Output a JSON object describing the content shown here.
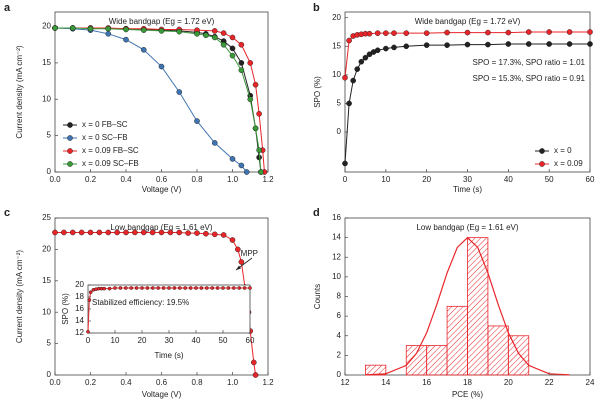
{
  "chart_data": [
    {
      "type": "line",
      "panel": "a",
      "title": "Wide bandgap (Eg = 1.72 eV)",
      "xlabel": "Voltage (V)",
      "ylabel": "Current density (mA cm⁻²)",
      "xlim": [
        0,
        1.2
      ],
      "xticks": [
        {
          "value": 0,
          "label": "0.0"
        },
        0.2,
        0.4,
        0.6,
        0.8,
        {
          "value": 1,
          "label": "1.0"
        },
        1.2
      ],
      "ylim": [
        0,
        22
      ],
      "yticks": [
        0,
        5,
        10,
        15,
        20
      ],
      "legend": "lower left",
      "series": [
        {
          "name": "x = 0 FB–SC",
          "color": "#222222",
          "x": [
            0,
            0.1,
            0.2,
            0.3,
            0.4,
            0.5,
            0.6,
            0.7,
            0.8,
            0.85,
            0.9,
            0.95,
            1.0,
            1.05,
            1.1,
            1.13,
            1.15,
            1.16
          ],
          "values": [
            19.8,
            19.8,
            19.8,
            19.7,
            19.7,
            19.6,
            19.5,
            19.4,
            19.2,
            19.0,
            18.6,
            18.0,
            17.0,
            15.0,
            10.5,
            6.0,
            2.0,
            0
          ]
        },
        {
          "name": "x = 0 SC–FB",
          "color": "#3f74b0",
          "x": [
            0,
            0.1,
            0.2,
            0.3,
            0.4,
            0.5,
            0.6,
            0.7,
            0.8,
            0.9,
            1.0,
            1.05,
            1.08
          ],
          "values": [
            19.8,
            19.7,
            19.5,
            19.0,
            18.2,
            16.8,
            14.5,
            11.0,
            7.0,
            4.0,
            1.8,
            0.9,
            0
          ]
        },
        {
          "name": "x = 0.09 FB–SC",
          "color": "#e8262a",
          "x": [
            0,
            0.1,
            0.2,
            0.3,
            0.4,
            0.5,
            0.6,
            0.7,
            0.8,
            0.9,
            0.95,
            1.0,
            1.05,
            1.1,
            1.13,
            1.15,
            1.17,
            1.18
          ],
          "values": [
            19.8,
            19.8,
            19.8,
            19.8,
            19.7,
            19.7,
            19.6,
            19.6,
            19.5,
            19.4,
            19.1,
            18.5,
            17.5,
            15.0,
            12.0,
            8.0,
            3.0,
            0
          ]
        },
        {
          "name": "x = 0.09 SC–FB",
          "color": "#3a9a3a",
          "x": [
            0,
            0.1,
            0.2,
            0.3,
            0.4,
            0.5,
            0.6,
            0.7,
            0.8,
            0.85,
            0.9,
            0.95,
            1.0,
            1.05,
            1.1,
            1.13,
            1.15,
            1.16
          ],
          "values": [
            19.8,
            19.8,
            19.7,
            19.7,
            19.6,
            19.5,
            19.4,
            19.3,
            19.0,
            18.8,
            18.5,
            17.5,
            16.0,
            14.0,
            10.0,
            6.0,
            3.0,
            0
          ]
        }
      ]
    },
    {
      "type": "line",
      "panel": "b",
      "title": "Wide bandgap (Eg = 1.72 eV)",
      "xlabel": "Time (s)",
      "ylabel": "SPO (%)",
      "xlim": [
        0,
        60
      ],
      "xticks": [
        0,
        10,
        20,
        30,
        40,
        50,
        60
      ],
      "ylim": [
        -7,
        21
      ],
      "yticks": [
        0,
        5,
        10,
        15,
        20
      ],
      "legend": "lower right",
      "annotations": [
        "SPO = 17.3%, SPO ratio = 1.01",
        "SPO = 15.3%, SPO ratio = 0.91"
      ],
      "series": [
        {
          "name": "x = 0",
          "color": "#222222",
          "x": [
            0,
            1,
            2,
            3,
            4,
            5,
            6,
            7,
            8,
            10,
            12,
            15,
            20,
            25,
            30,
            35,
            40,
            45,
            50,
            55,
            60
          ],
          "values": [
            -5.5,
            5,
            9,
            11,
            12.3,
            13,
            13.6,
            14,
            14.3,
            14.6,
            14.8,
            15,
            15.2,
            15.2,
            15.3,
            15.3,
            15.4,
            15.4,
            15.4,
            15.4,
            15.4
          ]
        },
        {
          "name": "x = 0.09",
          "color": "#e8262a",
          "x": [
            0,
            1,
            2,
            3,
            4,
            5,
            6,
            8,
            10,
            12,
            15,
            20,
            25,
            30,
            35,
            40,
            45,
            50,
            55,
            60
          ],
          "values": [
            9.5,
            16,
            16.8,
            17,
            17.1,
            17.2,
            17.2,
            17.3,
            17.3,
            17.3,
            17.3,
            17.3,
            17.4,
            17.4,
            17.4,
            17.4,
            17.5,
            17.5,
            17.5,
            17.5
          ]
        }
      ]
    },
    {
      "type": "line",
      "panel": "c",
      "title": "Low bandgap (Eg = 1.61 eV)",
      "xlabel": "Voltage (V)",
      "ylabel": "Current density (mA cm⁻²)",
      "xlim": [
        0,
        1.2
      ],
      "xticks": [
        {
          "value": 0,
          "label": "0.0"
        },
        0.2,
        0.4,
        0.6,
        0.8,
        {
          "value": 1,
          "label": "1.0"
        },
        1.2
      ],
      "ylim": [
        0,
        25
      ],
      "yticks": [
        0,
        5,
        10,
        15,
        20,
        25
      ],
      "annotations": [
        "MPP"
      ],
      "series": [
        {
          "name": "Low bandgap",
          "color": "#e8262a",
          "x": [
            0,
            0.05,
            0.1,
            0.15,
            0.2,
            0.25,
            0.3,
            0.35,
            0.4,
            0.45,
            0.5,
            0.55,
            0.6,
            0.65,
            0.7,
            0.75,
            0.8,
            0.85,
            0.9,
            0.95,
            1.0,
            1.03,
            1.05,
            1.07,
            1.09,
            1.1,
            1.12,
            1.13
          ],
          "values": [
            22.7,
            22.7,
            22.7,
            22.7,
            22.7,
            22.7,
            22.7,
            22.7,
            22.7,
            22.7,
            22.7,
            22.7,
            22.7,
            22.7,
            22.7,
            22.6,
            22.6,
            22.5,
            22.4,
            22.3,
            21.5,
            20,
            18,
            14,
            10,
            7,
            2,
            0
          ]
        }
      ],
      "inset": {
        "type": "line",
        "xlabel": "Time (s)",
        "ylabel": "SPO (%)",
        "xlim": [
          0,
          60
        ],
        "xticks": [
          0,
          10,
          20,
          30,
          40,
          50,
          60
        ],
        "ylim": [
          12,
          20
        ],
        "yticks": [
          12,
          14,
          16,
          18,
          20
        ],
        "annotations": [
          "Stabilized efficiency: 19.5%"
        ],
        "series": [
          {
            "name": "SPO",
            "color": "#e8262a",
            "x": [
              0,
              0.5,
              1,
              2,
              3,
              4,
              5,
              6,
              8,
              10,
              12,
              14,
              16,
              18,
              20,
              22,
              24,
              26,
              28,
              30,
              32,
              34,
              36,
              38,
              40,
              42,
              44,
              46,
              48,
              50,
              52,
              54,
              56,
              58,
              60
            ],
            "values": [
              12.2,
              17.5,
              18.8,
              19.2,
              19.3,
              19.4,
              19.4,
              19.4,
              19.4,
              19.5,
              19.5,
              19.5,
              19.5,
              19.5,
              19.5,
              19.5,
              19.5,
              19.5,
              19.5,
              19.5,
              19.5,
              19.5,
              19.5,
              19.5,
              19.5,
              19.5,
              19.5,
              19.5,
              19.5,
              19.5,
              19.5,
              19.5,
              19.5,
              19.5,
              19.5
            ]
          }
        ]
      }
    },
    {
      "type": "histogram",
      "panel": "d",
      "title": "Low bandgap (Eg = 1.61 eV)",
      "xlabel": "PCE (%)",
      "ylabel": "Counts",
      "color": "#e8262a",
      "xlim": [
        12,
        24
      ],
      "xticks": [
        12,
        14,
        16,
        18,
        20,
        22,
        24
      ],
      "ylim": [
        0,
        16
      ],
      "yticks": [
        0,
        2,
        4,
        6,
        8,
        10,
        12,
        14,
        16
      ],
      "bins": [
        13,
        14,
        15,
        16,
        17,
        18,
        19,
        20,
        21
      ],
      "counts": [
        1,
        0,
        3,
        3,
        7,
        14,
        5,
        4
      ],
      "fit": {
        "x": [
          13,
          14,
          15,
          15.5,
          16,
          16.5,
          17,
          17.5,
          18,
          18.5,
          19,
          19.5,
          20,
          20.5,
          21,
          22,
          23
        ],
        "values": [
          0.01,
          0.12,
          0.98,
          2.2,
          4.3,
          7.2,
          10.4,
          13.0,
          14,
          13.0,
          10.4,
          7.2,
          4.3,
          2.2,
          0.98,
          0.12,
          0.01
        ]
      }
    }
  ]
}
